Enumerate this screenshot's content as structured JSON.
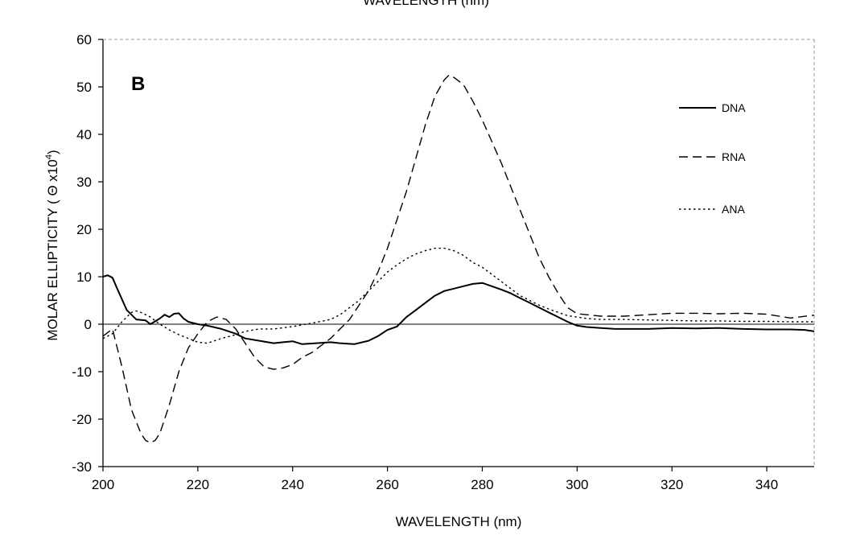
{
  "cut_off_title": "WAVELENGTH (nm)",
  "chart_data": {
    "type": "line",
    "panel_label": "B",
    "xlabel": "WAVELENGTH (nm)",
    "ylabel_main": "MOLAR ELLIPTICITY ( Θ x10",
    "ylabel_sup": "4",
    "ylabel_end": ")",
    "xlim": [
      200,
      350
    ],
    "ylim": [
      -30,
      60
    ],
    "xticks": [
      200,
      220,
      240,
      260,
      280,
      300,
      320,
      340
    ],
    "yticks": [
      60,
      50,
      40,
      30,
      20,
      10,
      0,
      -10,
      -20,
      -30
    ],
    "zero_line": true,
    "grid": false,
    "legend_position": "top-right",
    "series": [
      {
        "name": "DNA",
        "style": "solid",
        "x": [
          200,
          201,
          202,
          203,
          205,
          207,
          209,
          210,
          212,
          213,
          214,
          215,
          216,
          217,
          218,
          220,
          222,
          225,
          228,
          230,
          233,
          236,
          238,
          240,
          242,
          245,
          248,
          250,
          253,
          256,
          258,
          260,
          262,
          264,
          266,
          268,
          270,
          272,
          274,
          276,
          278,
          280,
          282,
          284,
          286,
          288,
          290,
          292,
          294,
          296,
          298,
          300,
          302,
          305,
          308,
          310,
          315,
          320,
          325,
          330,
          335,
          340,
          345,
          348,
          350
        ],
        "y": [
          10,
          10.3,
          9.8,
          7.5,
          3,
          1,
          0.8,
          0,
          1.2,
          2,
          1.5,
          2.2,
          2.3,
          1.2,
          0.5,
          0,
          -0.3,
          -1,
          -2,
          -3,
          -3.5,
          -4,
          -3.8,
          -3.6,
          -4.2,
          -4,
          -3.8,
          -4,
          -4.2,
          -3.5,
          -2.5,
          -1.2,
          -0.5,
          1.5,
          3,
          4.5,
          6,
          7,
          7.5,
          8,
          8.5,
          8.7,
          8,
          7.3,
          6.5,
          5.5,
          4.5,
          3.5,
          2.5,
          1.5,
          0.5,
          -0.3,
          -0.6,
          -0.8,
          -1,
          -1,
          -1,
          -0.8,
          -0.9,
          -0.8,
          -1,
          -1.1,
          -1.1,
          -1.2,
          -1.5
        ]
      },
      {
        "name": "RNA",
        "style": "dashed",
        "x": [
          200,
          202,
          204,
          206,
          208,
          209,
          210,
          211,
          212,
          214,
          216,
          218,
          220,
          222,
          224,
          226,
          228,
          230,
          232,
          234,
          236,
          238,
          240,
          242,
          244,
          246,
          248,
          250,
          252,
          254,
          256,
          258,
          260,
          262,
          264,
          266,
          268,
          270,
          272,
          273,
          274,
          276,
          278,
          280,
          282,
          284,
          286,
          288,
          290,
          292,
          294,
          296,
          298,
          300,
          302,
          305,
          310,
          315,
          320,
          325,
          330,
          335,
          340,
          345,
          350
        ],
        "y": [
          -2.5,
          -1,
          -9,
          -18,
          -23,
          -24.5,
          -25,
          -24.5,
          -23,
          -17,
          -10,
          -5,
          -2,
          0.5,
          1.5,
          1,
          -1,
          -4,
          -7,
          -9,
          -9.5,
          -9.2,
          -8.5,
          -7,
          -6,
          -4.5,
          -3,
          -1,
          1,
          4,
          7,
          11,
          16,
          22,
          28,
          35,
          42,
          48,
          51.5,
          52.5,
          52,
          50.5,
          47,
          43,
          38.5,
          34,
          29,
          24,
          19,
          14,
          10,
          6.5,
          3.5,
          2.2,
          2,
          1.7,
          1.7,
          2,
          2.3,
          2.3,
          2.2,
          2.3,
          2.1,
          1.3,
          1.9
        ]
      },
      {
        "name": "ANA",
        "style": "dotted",
        "x": [
          200,
          202,
          204,
          206,
          207,
          208,
          210,
          212,
          214,
          216,
          218,
          220,
          222,
          225,
          228,
          230,
          233,
          236,
          240,
          244,
          248,
          250,
          252,
          254,
          256,
          258,
          260,
          262,
          264,
          266,
          268,
          270,
          272,
          274,
          276,
          278,
          280,
          282,
          284,
          286,
          288,
          290,
          292,
          294,
          296,
          298,
          300,
          302,
          305,
          310,
          315,
          320,
          325,
          330,
          335,
          340,
          345,
          350
        ],
        "y": [
          -3,
          -2,
          0.5,
          2.5,
          2.8,
          2.5,
          1.5,
          0,
          -1.2,
          -2.2,
          -3,
          -3.8,
          -4,
          -3,
          -2.2,
          -1.5,
          -1,
          -1,
          -0.5,
          0.2,
          1,
          2,
          3.5,
          5,
          7,
          9,
          11,
          12.5,
          13.8,
          14.8,
          15.5,
          16,
          16,
          15.5,
          14.5,
          13,
          12,
          10.5,
          9,
          7.5,
          6,
          5,
          4,
          3.2,
          2.5,
          1.8,
          1.5,
          1.2,
          1,
          1,
          0.9,
          0.8,
          0.7,
          0.7,
          0.6,
          0.6,
          0.5,
          0.5
        ]
      }
    ]
  }
}
